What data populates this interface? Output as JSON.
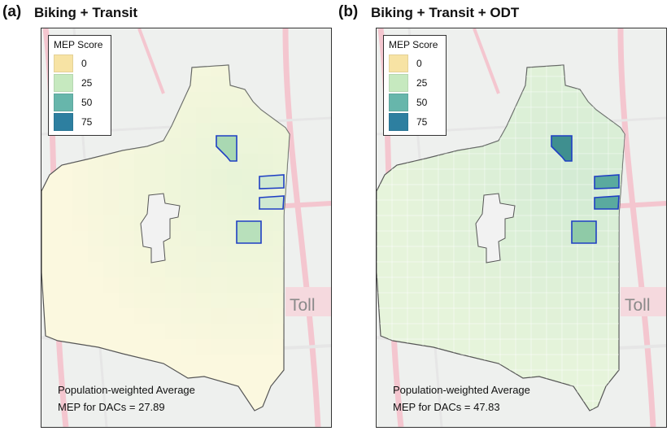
{
  "panels": [
    {
      "label": "(a)",
      "title": "Biking + Transit",
      "legend": {
        "title": "MEP Score",
        "items": [
          {
            "value": "0",
            "color": "#f7e3a4"
          },
          {
            "value": "25",
            "color": "#c6e9bf"
          },
          {
            "value": "50",
            "color": "#67b6ab"
          },
          {
            "value": "75",
            "color": "#2d7fa0"
          }
        ]
      },
      "average_line1": "Population-weighted Average",
      "average_line2": "MEP for DACs = 27.89",
      "average_value": 27.89,
      "base_fill": "#fbf8df",
      "grid_tint": "#e4f3d6",
      "basemap_label": "Toll"
    },
    {
      "label": "(b)",
      "title": "Biking + Transit + ODT",
      "legend": {
        "title": "MEP Score",
        "items": [
          {
            "value": "0",
            "color": "#f7e3a4"
          },
          {
            "value": "25",
            "color": "#c6e9bf"
          },
          {
            "value": "50",
            "color": "#67b6ab"
          },
          {
            "value": "75",
            "color": "#2d7fa0"
          }
        ]
      },
      "average_line1": "Population-weighted Average",
      "average_line2": "MEP for DACs = 47.83",
      "average_value": 47.83,
      "base_fill": "#e6f4db",
      "grid_tint": "#cfe9d2",
      "basemap_label": "Toll"
    }
  ],
  "dac_outline_color": "#1f3fc4",
  "boundary_color": "#555555"
}
